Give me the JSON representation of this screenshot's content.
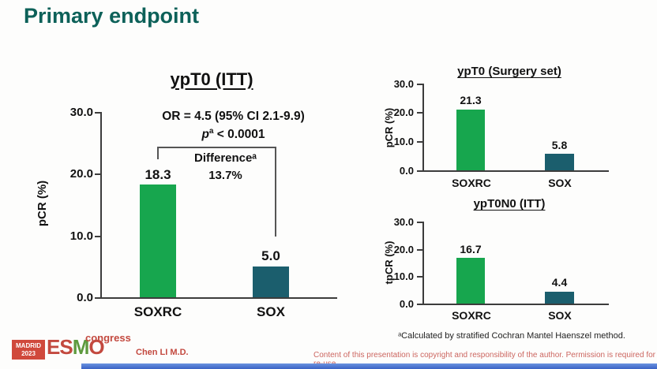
{
  "slide": {
    "title": "Primary endpoint",
    "footnote": "ᵃCalculated by stratified Cochran Mantel Haenszel method.",
    "author": "Chen LI M.D.",
    "disclaimer": "Content of this presentation is copyright and responsibility of the author. Permission is required for re-use.",
    "logo": {
      "location": "MADRID",
      "year": "2023",
      "org_e": "E",
      "org_s": "S",
      "org_m": "M",
      "org_o": "O",
      "event": "congress"
    }
  },
  "colors": {
    "title_teal": "#0d6159",
    "bar_green": "#17a64e",
    "bar_teal": "#1b5e6d",
    "accent_red": "#c3493f",
    "footer_blue": "#4470cd"
  },
  "chart_data": [
    {
      "type": "bar",
      "title": "ypT0 (ITT)",
      "ylabel": "pCR (%)",
      "ylim": [
        0,
        30
      ],
      "yticks": [
        "30.0",
        "20.0",
        "10.0",
        "0.0"
      ],
      "categories": [
        "SOXRC",
        "SOX"
      ],
      "values": [
        18.3,
        5.0
      ],
      "value_labels": [
        "18.3",
        "5.0"
      ],
      "annotations": {
        "or_line": "OR = 4.5 (95% CI 2.1-9.9)",
        "p_italic": "p",
        "p_sup": "a",
        "p_rest": " < 0.0001",
        "difference_label": "Differenceᵃ",
        "difference_value": "13.7%"
      }
    },
    {
      "type": "bar",
      "title": "ypT0 (Surgery set)",
      "ylabel": "pCR (%)",
      "ylim": [
        0,
        30
      ],
      "yticks": [
        "30.0",
        "20.0",
        "10.0",
        "0.0"
      ],
      "categories": [
        "SOXRC",
        "SOX"
      ],
      "values": [
        21.3,
        5.8
      ],
      "value_labels": [
        "21.3",
        "5.8"
      ]
    },
    {
      "type": "bar",
      "title": "ypT0N0 (ITT)",
      "ylabel": "tpCR (%)",
      "ylim": [
        0,
        30
      ],
      "yticks": [
        "30.0",
        "20.0",
        "10.0",
        "0.0"
      ],
      "categories": [
        "SOXRC",
        "SOX"
      ],
      "values": [
        16.7,
        4.4
      ],
      "value_labels": [
        "16.7",
        "4.4"
      ]
    }
  ]
}
